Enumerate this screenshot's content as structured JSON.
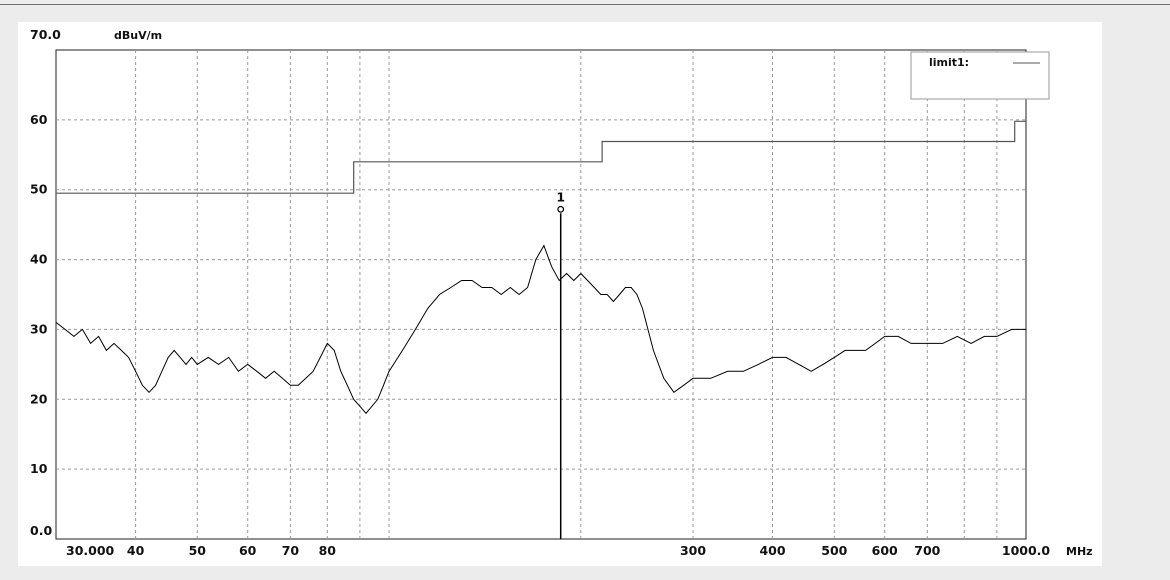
{
  "chart_data": {
    "type": "line",
    "title": "",
    "xlabel": "MHz",
    "ylabel": "dBuV/m",
    "x_scale": "log",
    "xlim": [
      30,
      1000
    ],
    "ylim": [
      0,
      70
    ],
    "grid": true,
    "legend_position": "top-right",
    "x_tick_labels": [
      {
        "value": 30,
        "label": "30.000"
      },
      {
        "value": 40,
        "label": "40"
      },
      {
        "value": 50,
        "label": "50"
      },
      {
        "value": 60,
        "label": "60"
      },
      {
        "value": 70,
        "label": "70"
      },
      {
        "value": 80,
        "label": "80"
      },
      {
        "value": 300,
        "label": "300"
      },
      {
        "value": 400,
        "label": "400"
      },
      {
        "value": 500,
        "label": "500"
      },
      {
        "value": 600,
        "label": "600"
      },
      {
        "value": 700,
        "label": "700"
      },
      {
        "value": 1000,
        "label": "1000.0"
      }
    ],
    "y_tick_labels": [
      {
        "value": 0,
        "label": "0.0"
      },
      {
        "value": 10,
        "label": "10"
      },
      {
        "value": 20,
        "label": "20"
      },
      {
        "value": 30,
        "label": "30"
      },
      {
        "value": 40,
        "label": "40"
      },
      {
        "value": 50,
        "label": "50"
      },
      {
        "value": 60,
        "label": "60"
      },
      {
        "value": 70,
        "label": "70.0"
      }
    ],
    "x_grid": [
      40,
      50,
      60,
      70,
      80,
      90,
      100,
      200,
      300,
      400,
      500,
      600,
      700,
      800,
      900
    ],
    "y_grid": [
      10,
      20,
      30,
      40,
      50,
      60
    ],
    "series": [
      {
        "name": "limit1:",
        "color": "#555555",
        "x": [
          30,
          88,
          88,
          216,
          216,
          960,
          960,
          1000
        ],
        "y": [
          49.5,
          49.5,
          54.0,
          54.0,
          56.9,
          56.9,
          59.8,
          59.8
        ]
      },
      {
        "name": "",
        "color": "#000000",
        "x": [
          30,
          31,
          32,
          33,
          34,
          35,
          36,
          37,
          38,
          39,
          40,
          41,
          42,
          43,
          44,
          45,
          46,
          47,
          48,
          49,
          50,
          52,
          54,
          56,
          58,
          60,
          62,
          64,
          66,
          68,
          70,
          72,
          74,
          76,
          78,
          80,
          82,
          84,
          86,
          88,
          90,
          92,
          94,
          96,
          98,
          100,
          105,
          110,
          115,
          120,
          125,
          130,
          135,
          140,
          145,
          150,
          155,
          160,
          165,
          170,
          175,
          180,
          185,
          190,
          195,
          200,
          205,
          210,
          215,
          220,
          225,
          230,
          235,
          240,
          245,
          250,
          260,
          270,
          280,
          290,
          300,
          320,
          340,
          360,
          380,
          400,
          420,
          440,
          460,
          480,
          500,
          520,
          540,
          560,
          580,
          600,
          630,
          660,
          700,
          740,
          780,
          820,
          860,
          900,
          950,
          1000
        ],
        "y": [
          31,
          30,
          29,
          30,
          28,
          29,
          27,
          28,
          27,
          26,
          24,
          22,
          21,
          22,
          24,
          26,
          27,
          26,
          25,
          26,
          25,
          26,
          25,
          26,
          24,
          25,
          24,
          23,
          24,
          23,
          22,
          22,
          23,
          24,
          26,
          28,
          27,
          24,
          22,
          20,
          19,
          18,
          19,
          20,
          22,
          24,
          27,
          30,
          33,
          35,
          36,
          37,
          37,
          36,
          36,
          35,
          36,
          35,
          36,
          40,
          42,
          39,
          37,
          38,
          37,
          38,
          37,
          36,
          35,
          35,
          34,
          35,
          36,
          36,
          35,
          33,
          27,
          23,
          21,
          22,
          23,
          23,
          24,
          24,
          25,
          26,
          26,
          25,
          24,
          25,
          26,
          27,
          27,
          27,
          28,
          29,
          29,
          28,
          28,
          28,
          29,
          28,
          29,
          29,
          30,
          30
        ]
      }
    ],
    "marker": {
      "label": "1",
      "x": 186,
      "y": 47.2
    }
  }
}
